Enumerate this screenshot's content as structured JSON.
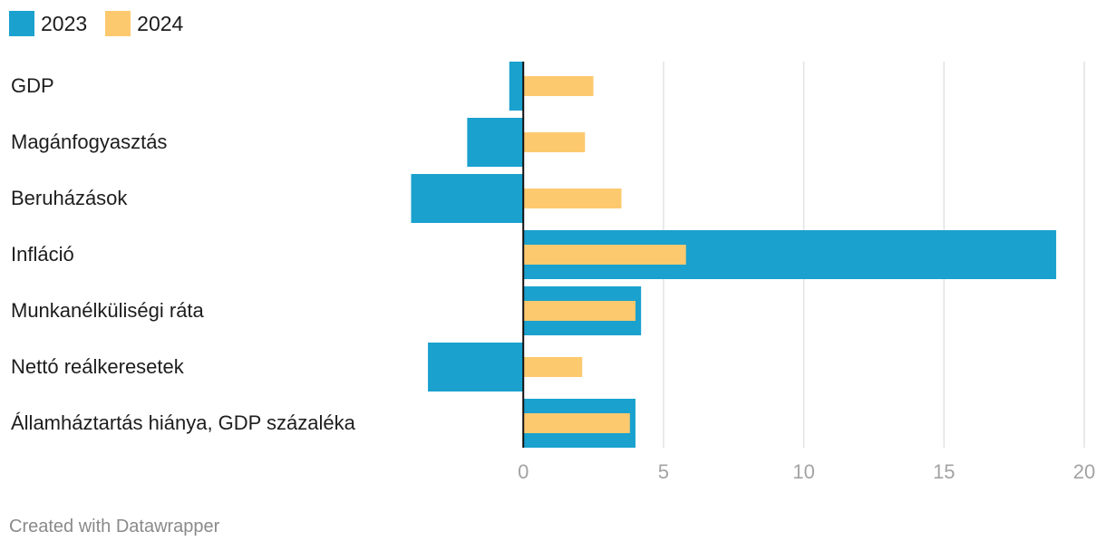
{
  "legend": [
    {
      "label": "2023",
      "color": "#1aa1ce"
    },
    {
      "label": "2024",
      "color": "#fdc96f"
    }
  ],
  "chart_data": {
    "type": "bar",
    "orientation": "horizontal",
    "categories": [
      "GDP",
      "Magánfogyasztás",
      "Beruházások",
      "Infláció",
      "Munkanélküliségi ráta",
      "Nettó reálkeresetek",
      "Államháztartás hiánya, GDP százaléka"
    ],
    "series": [
      {
        "name": "2023",
        "color": "#1aa1ce",
        "values": [
          -0.5,
          -2.0,
          -4.0,
          19.0,
          4.2,
          -3.4,
          4.0
        ]
      },
      {
        "name": "2024",
        "color": "#fdc96f",
        "values": [
          2.5,
          2.2,
          3.5,
          5.8,
          4.0,
          2.1,
          3.8
        ]
      }
    ],
    "xlim": [
      -4.5,
      20
    ],
    "xticks": [
      0,
      5,
      10,
      15,
      20
    ],
    "grid": true,
    "legend_position": "top-left"
  },
  "footer": "Created with Datawrapper"
}
